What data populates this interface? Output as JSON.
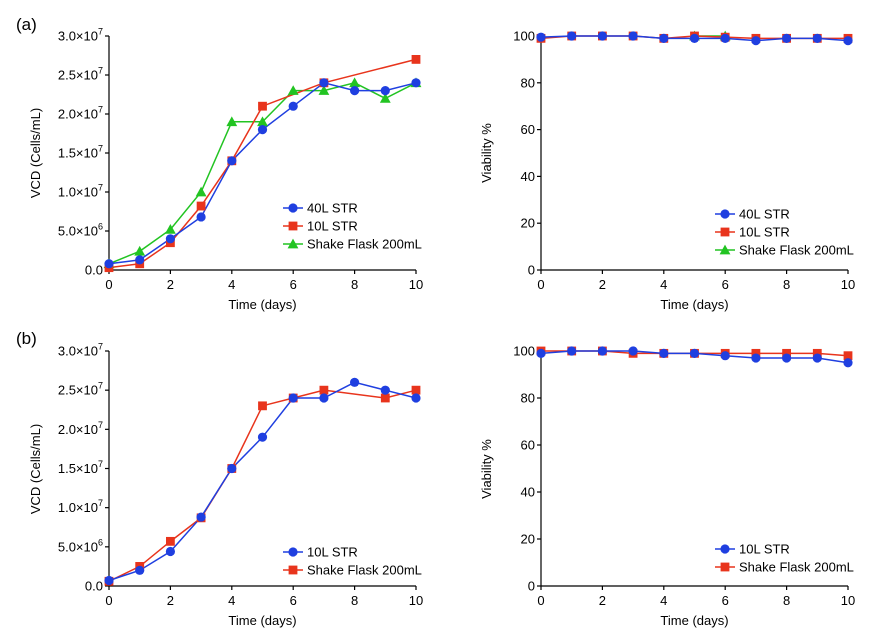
{
  "panel_labels": [
    "(a)",
    "(b)"
  ],
  "colors": {
    "40L STR": "#1f3fe0",
    "10L STR": "#e8341c",
    "Shake Flask 200mL": "#22c422"
  },
  "chart_data": [
    {
      "type": "line",
      "panel": "(a)",
      "xlabel": "Time (days)",
      "ylabel": "VCD (Cells/mL)",
      "xlim": [
        0,
        10
      ],
      "ylim": [
        0,
        30000000
      ],
      "xticks": [
        "0",
        "2",
        "4",
        "6",
        "8",
        "10"
      ],
      "yticks": [
        {
          "value": 0,
          "label": "0.0"
        },
        {
          "value": 5000000,
          "label": "5.0×10",
          "exp": "6"
        },
        {
          "value": 10000000,
          "label": "1.0×10",
          "exp": "7"
        },
        {
          "value": 15000000,
          "label": "1.5×10",
          "exp": "7"
        },
        {
          "value": 20000000,
          "label": "2.0×10",
          "exp": "7"
        },
        {
          "value": 25000000,
          "label": "2.5×10",
          "exp": "7"
        },
        {
          "value": 30000000,
          "label": "3.0×10",
          "exp": "7"
        }
      ],
      "legend_position": "bottom-right",
      "series": [
        {
          "name": "40L STR",
          "marker": "circle",
          "x": [
            0,
            1,
            2,
            3,
            4,
            5,
            6,
            7,
            8,
            9,
            10
          ],
          "values": [
            800000,
            1300000,
            4000000,
            6800000,
            14000000,
            18000000,
            21000000,
            24000000,
            23000000,
            23000000,
            24000000
          ]
        },
        {
          "name": "10L STR",
          "marker": "square",
          "x": [
            0,
            1,
            2,
            3,
            4,
            5,
            7,
            10
          ],
          "values": [
            300000,
            800000,
            3500000,
            8200000,
            14000000,
            21000000,
            24000000,
            27000000
          ]
        },
        {
          "name": "Shake Flask 200mL",
          "marker": "triangle",
          "x": [
            0,
            1,
            2,
            3,
            4,
            5,
            6,
            7,
            8,
            9,
            10
          ],
          "values": [
            800000,
            2400000,
            5200000,
            10000000,
            19000000,
            19000000,
            23000000,
            23000000,
            24000000,
            22000000,
            24000000
          ]
        }
      ]
    },
    {
      "type": "line",
      "panel": "(a)",
      "xlabel": "Time (days)",
      "ylabel": "Viability %",
      "xlim": [
        0,
        10
      ],
      "ylim": [
        0,
        100
      ],
      "xticks": [
        "0",
        "2",
        "4",
        "6",
        "8",
        "10"
      ],
      "yticks": [
        {
          "value": 0,
          "label": "0"
        },
        {
          "value": 20,
          "label": "20"
        },
        {
          "value": 40,
          "label": "40"
        },
        {
          "value": 60,
          "label": "60"
        },
        {
          "value": 80,
          "label": "80"
        },
        {
          "value": 100,
          "label": "100"
        }
      ],
      "legend_position": "bottom-right",
      "series": [
        {
          "name": "40L STR",
          "marker": "circle",
          "x": [
            0,
            1,
            2,
            3,
            4,
            5,
            6,
            7,
            8,
            9,
            10
          ],
          "values": [
            99.5,
            100,
            100,
            100,
            99,
            99,
            99,
            98,
            99,
            99,
            98
          ]
        },
        {
          "name": "10L STR",
          "marker": "square",
          "x": [
            0,
            1,
            2,
            3,
            4,
            5,
            6,
            7,
            8,
            9,
            10
          ],
          "values": [
            99,
            100,
            100,
            100,
            99,
            100,
            99.5,
            99,
            99,
            99,
            99
          ]
        },
        {
          "name": "Shake Flask 200mL",
          "marker": "triangle",
          "x": [
            5,
            6
          ],
          "values": [
            100,
            100
          ]
        }
      ]
    },
    {
      "type": "line",
      "panel": "(b)",
      "xlabel": "Time (days)",
      "ylabel": "VCD (Cells/mL)",
      "xlim": [
        0,
        10
      ],
      "ylim": [
        0,
        30000000
      ],
      "xticks": [
        "0",
        "2",
        "4",
        "6",
        "8",
        "10"
      ],
      "yticks": [
        {
          "value": 0,
          "label": "0.0"
        },
        {
          "value": 5000000,
          "label": "5.0×10",
          "exp": "6"
        },
        {
          "value": 10000000,
          "label": "1.0×10",
          "exp": "7"
        },
        {
          "value": 15000000,
          "label": "1.5×10",
          "exp": "7"
        },
        {
          "value": 20000000,
          "label": "2.0×10",
          "exp": "7"
        },
        {
          "value": 25000000,
          "label": "2.5×10",
          "exp": "7"
        },
        {
          "value": 30000000,
          "label": "3.0×10",
          "exp": "7"
        }
      ],
      "legend_position": "bottom-right",
      "series": [
        {
          "name": "10L STR",
          "color_key": "40L STR",
          "marker": "circle",
          "x": [
            0,
            1,
            2,
            3,
            4,
            5,
            6,
            7,
            8,
            9,
            10
          ],
          "values": [
            700000,
            2000000,
            4400000,
            8800000,
            15000000,
            19000000,
            24000000,
            24000000,
            26000000,
            25000000,
            24000000
          ]
        },
        {
          "name": "Shake Flask 200mL",
          "color_key": "10L STR",
          "marker": "square",
          "x": [
            0,
            1,
            2,
            3,
            4,
            5,
            6,
            7,
            9,
            10
          ],
          "values": [
            600000,
            2500000,
            5700000,
            8700000,
            15000000,
            23000000,
            24000000,
            25000000,
            24000000,
            25000000
          ]
        }
      ]
    },
    {
      "type": "line",
      "panel": "(b)",
      "xlabel": "Time (days)",
      "ylabel": "Viability %",
      "xlim": [
        0,
        10
      ],
      "ylim": [
        0,
        100
      ],
      "xticks": [
        "0",
        "2",
        "4",
        "6",
        "8",
        "10"
      ],
      "yticks": [
        {
          "value": 0,
          "label": "0"
        },
        {
          "value": 20,
          "label": "20"
        },
        {
          "value": 40,
          "label": "40"
        },
        {
          "value": 60,
          "label": "60"
        },
        {
          "value": 80,
          "label": "80"
        },
        {
          "value": 100,
          "label": "100"
        }
      ],
      "legend_position": "bottom-right",
      "series": [
        {
          "name": "10L STR",
          "color_key": "40L STR",
          "marker": "circle",
          "x": [
            0,
            1,
            2,
            3,
            4,
            5,
            6,
            7,
            8,
            9,
            10
          ],
          "values": [
            99,
            100,
            100,
            100,
            99,
            99,
            98,
            97,
            97,
            97,
            95
          ]
        },
        {
          "name": "Shake Flask 200mL",
          "color_key": "10L STR",
          "marker": "square",
          "x": [
            0,
            1,
            2,
            3,
            4,
            5,
            6,
            7,
            8,
            9,
            10
          ],
          "values": [
            100,
            100,
            100,
            99,
            99,
            99,
            99,
            99,
            99,
            99,
            98
          ]
        }
      ]
    }
  ]
}
